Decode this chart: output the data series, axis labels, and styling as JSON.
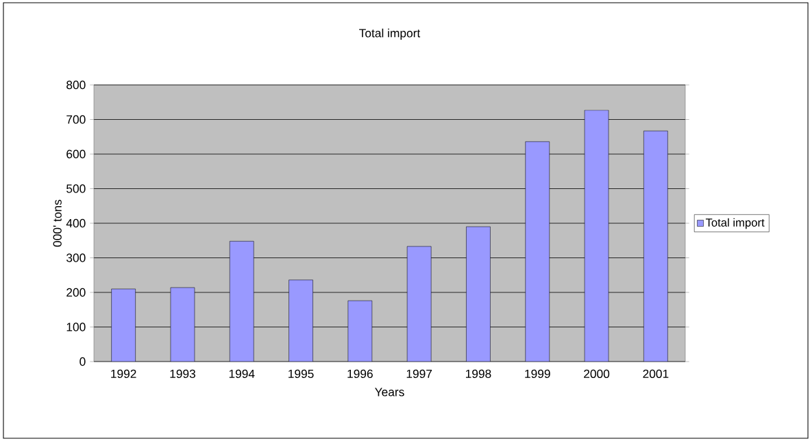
{
  "chart_data": {
    "type": "bar",
    "title": "Total import",
    "xlabel": "Years",
    "ylabel": "000' tons",
    "categories": [
      "1992",
      "1993",
      "1994",
      "1995",
      "1996",
      "1997",
      "1998",
      "1999",
      "2000",
      "2001"
    ],
    "series": [
      {
        "name": "Total import",
        "color": "#9999ff",
        "values": [
          210,
          214,
          348,
          236,
          176,
          333,
          390,
          636,
          727,
          667
        ]
      }
    ],
    "ylim": [
      0,
      800
    ],
    "yticks": [
      0,
      100,
      200,
      300,
      400,
      500,
      600,
      700,
      800
    ],
    "grid": "y",
    "legend": "right"
  }
}
